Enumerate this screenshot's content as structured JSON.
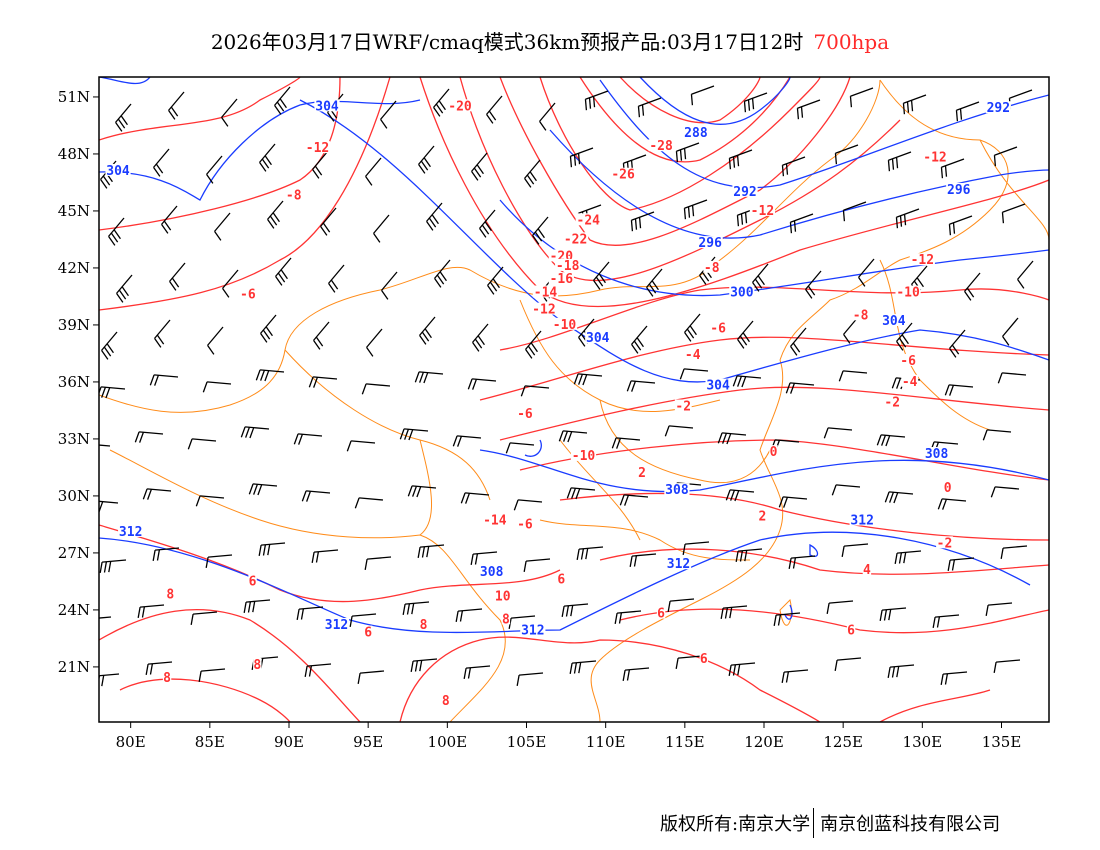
{
  "title": {
    "main": "2026年03月17日WRF/cmaq模式36km预报产品:03月17日12时",
    "level": "700hpa"
  },
  "footer": {
    "left": "版权所有:南京大学",
    "right": "南京创蓝科技有限公司"
  },
  "colors": {
    "temperature": "#ff3333",
    "height": "#1a3cff",
    "boundary": "#ff8c1a",
    "wind": "#000000"
  },
  "chart_data": {
    "type": "map",
    "lon_range": [
      78,
      138
    ],
    "lat_range": [
      18.1,
      52.05
    ],
    "lon_ticks": [
      "80E",
      "85E",
      "90E",
      "95E",
      "100E",
      "105E",
      "110E",
      "115E",
      "120E",
      "125E",
      "130E",
      "135E"
    ],
    "lon_tick_values": [
      80,
      85,
      90,
      95,
      100,
      105,
      110,
      115,
      120,
      125,
      130,
      135
    ],
    "lat_ticks": [
      "51N",
      "48N",
      "45N",
      "42N",
      "39N",
      "36N",
      "33N",
      "30N",
      "27N",
      "24N",
      "21N"
    ],
    "lat_tick_values": [
      51,
      48,
      45,
      42,
      39,
      36,
      33,
      30,
      27,
      24,
      21
    ],
    "temperature_labels": [
      {
        "t": "-20",
        "lon": 100.8,
        "lat": 50.4
      },
      {
        "t": "-12",
        "lon": 91.8,
        "lat": 48.2
      },
      {
        "t": "-8",
        "lon": 90.3,
        "lat": 45.7
      },
      {
        "t": "-28",
        "lon": 113.5,
        "lat": 48.3
      },
      {
        "t": "-26",
        "lon": 111.1,
        "lat": 46.8
      },
      {
        "t": "-24",
        "lon": 108.9,
        "lat": 44.4
      },
      {
        "t": "-22",
        "lon": 108.1,
        "lat": 43.4
      },
      {
        "t": "-20",
        "lon": 107.2,
        "lat": 42.5
      },
      {
        "t": "-18",
        "lon": 107.6,
        "lat": 42.0
      },
      {
        "t": "-16",
        "lon": 107.2,
        "lat": 41.3
      },
      {
        "t": "-14",
        "lon": 106.2,
        "lat": 40.6
      },
      {
        "t": "-12",
        "lon": 106.1,
        "lat": 39.7
      },
      {
        "t": "-10",
        "lon": 107.4,
        "lat": 38.9
      },
      {
        "t": "-12",
        "lon": 119.9,
        "lat": 44.9
      },
      {
        "t": "-8",
        "lon": 116.7,
        "lat": 41.9
      },
      {
        "t": "-6",
        "lon": 117.1,
        "lat": 38.7
      },
      {
        "t": "-8",
        "lon": 126.1,
        "lat": 39.4
      },
      {
        "t": "-10",
        "lon": 129.1,
        "lat": 40.6
      },
      {
        "t": "-12",
        "lon": 130.0,
        "lat": 42.3
      },
      {
        "t": "-12",
        "lon": 130.8,
        "lat": 47.7
      },
      {
        "t": "-6",
        "lon": 129.1,
        "lat": 37.0
      },
      {
        "t": "-4",
        "lon": 129.2,
        "lat": 35.9
      },
      {
        "t": "-2",
        "lon": 128.1,
        "lat": 34.8
      },
      {
        "t": "-4",
        "lon": 115.5,
        "lat": 37.3
      },
      {
        "t": "-2",
        "lon": 114.9,
        "lat": 34.6
      },
      {
        "t": "-6",
        "lon": 104.9,
        "lat": 34.2
      },
      {
        "t": "-6",
        "lon": 87.4,
        "lat": 40.5
      },
      {
        "t": "-10",
        "lon": 108.6,
        "lat": 32.0
      },
      {
        "t": "2",
        "lon": 112.3,
        "lat": 31.1
      },
      {
        "t": "0",
        "lon": 120.6,
        "lat": 32.2
      },
      {
        "t": "0",
        "lon": 131.6,
        "lat": 30.3
      },
      {
        "t": "2",
        "lon": 119.9,
        "lat": 28.8
      },
      {
        "t": "-2",
        "lon": 131.4,
        "lat": 27.4
      },
      {
        "t": "4",
        "lon": 126.5,
        "lat": 26.0
      },
      {
        "t": "6",
        "lon": 125.5,
        "lat": 22.8
      },
      {
        "t": "6",
        "lon": 113.5,
        "lat": 23.7
      },
      {
        "t": "6",
        "lon": 116.2,
        "lat": 21.3
      },
      {
        "t": "-14",
        "lon": 103.0,
        "lat": 28.6
      },
      {
        "t": "-6",
        "lon": 104.9,
        "lat": 28.4
      },
      {
        "t": "6",
        "lon": 107.2,
        "lat": 25.5
      },
      {
        "t": "10",
        "lon": 103.5,
        "lat": 24.6
      },
      {
        "t": "8",
        "lon": 103.7,
        "lat": 23.4
      },
      {
        "t": "8",
        "lon": 98.5,
        "lat": 23.1
      },
      {
        "t": "6",
        "lon": 95.0,
        "lat": 22.7
      },
      {
        "t": "8",
        "lon": 88.0,
        "lat": 21.0
      },
      {
        "t": "6",
        "lon": 87.7,
        "lat": 25.4
      },
      {
        "t": "8",
        "lon": 82.5,
        "lat": 24.7
      },
      {
        "t": "8",
        "lon": 82.3,
        "lat": 20.3
      },
      {
        "t": "8",
        "lon": 99.9,
        "lat": 19.1
      }
    ],
    "height_labels": [
      {
        "t": "304",
        "lon": 92.4,
        "lat": 50.4
      },
      {
        "t": "292",
        "lon": 134.8,
        "lat": 50.3
      },
      {
        "t": "288",
        "lon": 115.7,
        "lat": 49.0
      },
      {
        "t": "304",
        "lon": 79.2,
        "lat": 47.0
      },
      {
        "t": "292",
        "lon": 118.8,
        "lat": 45.9
      },
      {
        "t": "296",
        "lon": 132.3,
        "lat": 46.0
      },
      {
        "t": "296",
        "lon": 116.6,
        "lat": 43.2
      },
      {
        "t": "300",
        "lon": 118.6,
        "lat": 40.6
      },
      {
        "t": "304",
        "lon": 128.2,
        "lat": 39.1
      },
      {
        "t": "304",
        "lon": 109.5,
        "lat": 38.2
      },
      {
        "t": "304",
        "lon": 117.1,
        "lat": 35.7
      },
      {
        "t": "308",
        "lon": 130.9,
        "lat": 32.1
      },
      {
        "t": "308",
        "lon": 114.5,
        "lat": 30.2
      },
      {
        "t": "312",
        "lon": 126.2,
        "lat": 28.6
      },
      {
        "t": "312",
        "lon": 80.0,
        "lat": 28.0
      },
      {
        "t": "308",
        "lon": 102.8,
        "lat": 25.9
      },
      {
        "t": "312",
        "lon": 93.0,
        "lat": 23.1
      },
      {
        "t": "312",
        "lon": 105.4,
        "lat": 22.8
      },
      {
        "t": "312",
        "lon": 114.6,
        "lat": 26.3
      }
    ]
  }
}
